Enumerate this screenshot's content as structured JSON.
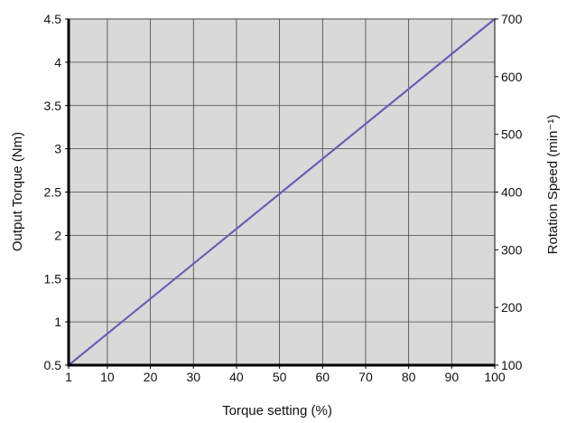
{
  "chart_data": {
    "type": "line",
    "title": "",
    "xlabel": "Torque setting (%)",
    "ylabel": "Output Torque (Nm)",
    "y2label": "Rotation Speed (min⁻¹)",
    "xlim": [
      1,
      100
    ],
    "ylim": [
      0.5,
      4.5
    ],
    "y2lim": [
      100,
      700
    ],
    "x_ticks": [
      "1",
      "10",
      "20",
      "30",
      "40",
      "50",
      "60",
      "70",
      "80",
      "90",
      "100"
    ],
    "y_ticks": [
      "0.5",
      "1",
      "1.5",
      "2",
      "2.5",
      "3",
      "3.5",
      "4",
      "4.5"
    ],
    "y2_ticks": [
      "100",
      "200",
      "300",
      "400",
      "500",
      "600",
      "700"
    ],
    "grid": true,
    "plot_background": "#d9d9d9",
    "series": [
      {
        "color": "#6a5fb5",
        "x": [
          1,
          100
        ],
        "y": [
          0.5,
          4.5
        ]
      }
    ]
  }
}
